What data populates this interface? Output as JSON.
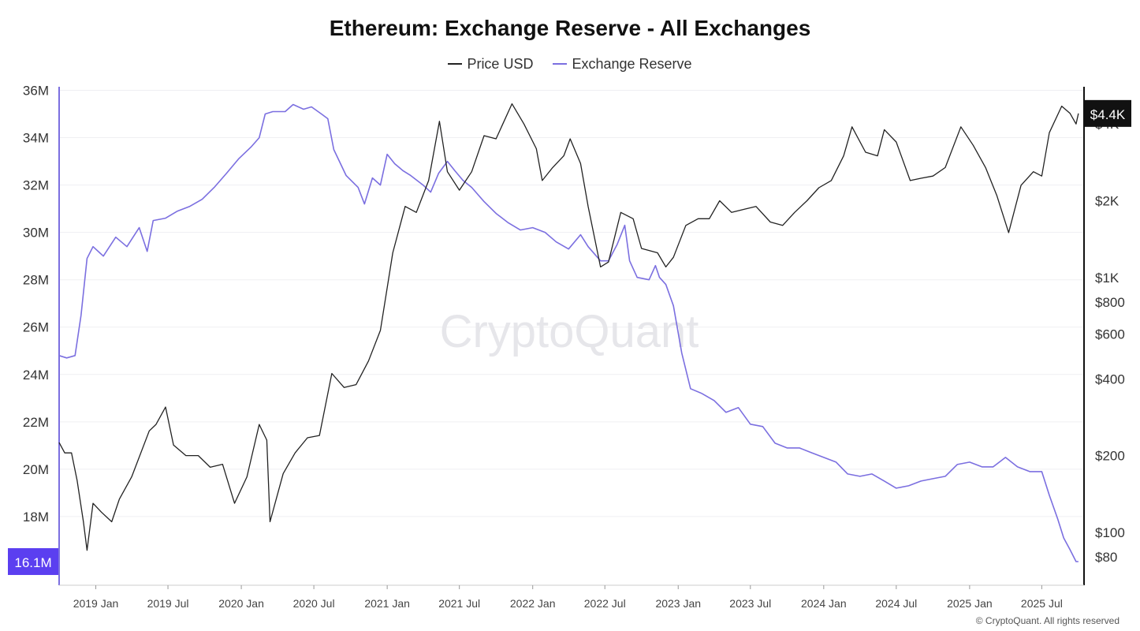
{
  "chart_data": {
    "type": "line",
    "title": "Ethereum: Exchange Reserve - All Exchanges",
    "legend": [
      {
        "name": "Price USD",
        "color": "#222222"
      },
      {
        "name": "Exchange Reserve",
        "color": "#7b6fe0"
      }
    ],
    "legend_placement": "top-center",
    "grid": true,
    "x_range": [
      "2018-10-01",
      "2025-10-15"
    ],
    "x_ticks": [
      {
        "date": "2019-01-01",
        "label": "2019 Jan"
      },
      {
        "date": "2019-07-01",
        "label": "2019 Jul"
      },
      {
        "date": "2020-01-01",
        "label": "2020 Jan"
      },
      {
        "date": "2020-07-01",
        "label": "2020 Jul"
      },
      {
        "date": "2021-01-01",
        "label": "2021 Jan"
      },
      {
        "date": "2021-07-01",
        "label": "2021 Jul"
      },
      {
        "date": "2022-01-01",
        "label": "2022 Jan"
      },
      {
        "date": "2022-07-01",
        "label": "2022 Jul"
      },
      {
        "date": "2023-01-01",
        "label": "2023 Jan"
      },
      {
        "date": "2023-07-01",
        "label": "2023 Jul"
      },
      {
        "date": "2024-01-01",
        "label": "2024 Jan"
      },
      {
        "date": "2024-07-01",
        "label": "2024 Jul"
      },
      {
        "date": "2025-01-01",
        "label": "2025 Jan"
      },
      {
        "date": "2025-07-01",
        "label": "2025 Jul"
      }
    ],
    "left_axis": {
      "scale": "linear",
      "range": [
        15100000,
        36150000
      ],
      "ticks": [
        {
          "value": 36000000,
          "label": "36M"
        },
        {
          "value": 34000000,
          "label": "34M"
        },
        {
          "value": 32000000,
          "label": "32M"
        },
        {
          "value": 30000000,
          "label": "30M"
        },
        {
          "value": 28000000,
          "label": "28M"
        },
        {
          "value": 26000000,
          "label": "26M"
        },
        {
          "value": 24000000,
          "label": "24M"
        },
        {
          "value": 22000000,
          "label": "22M"
        },
        {
          "value": 20000000,
          "label": "20M"
        },
        {
          "value": 18000000,
          "label": "18M"
        }
      ],
      "current_value_label": "16.1M",
      "current_value": 16100000
    },
    "right_axis": {
      "scale": "log",
      "range": [
        62,
        5600
      ],
      "ticks": [
        {
          "value": 4000,
          "label": "$4K"
        },
        {
          "value": 2000,
          "label": "$2K"
        },
        {
          "value": 1000,
          "label": "$1K"
        },
        {
          "value": 800,
          "label": "$800"
        },
        {
          "value": 600,
          "label": "$600"
        },
        {
          "value": 400,
          "label": "$400"
        },
        {
          "value": 200,
          "label": "$200"
        },
        {
          "value": 100,
          "label": "$100"
        },
        {
          "value": 80,
          "label": "$80"
        }
      ],
      "current_value_label": "$4.4K",
      "current_value": 4400
    },
    "series": [
      {
        "name": "Exchange Reserve",
        "axis": "left",
        "color": "#7b6fe0",
        "points": [
          [
            "2018-10-01",
            24800000
          ],
          [
            "2018-10-20",
            24700000
          ],
          [
            "2018-11-10",
            24800000
          ],
          [
            "2018-11-25",
            26500000
          ],
          [
            "2018-12-10",
            28900000
          ],
          [
            "2018-12-25",
            29400000
          ],
          [
            "2019-01-20",
            29000000
          ],
          [
            "2019-02-20",
            29800000
          ],
          [
            "2019-03-20",
            29400000
          ],
          [
            "2019-04-20",
            30200000
          ],
          [
            "2019-05-10",
            29200000
          ],
          [
            "2019-05-25",
            30500000
          ],
          [
            "2019-06-25",
            30600000
          ],
          [
            "2019-07-25",
            30900000
          ],
          [
            "2019-08-25",
            31100000
          ],
          [
            "2019-09-25",
            31400000
          ],
          [
            "2019-10-25",
            31900000
          ],
          [
            "2019-11-25",
            32500000
          ],
          [
            "2019-12-25",
            33100000
          ],
          [
            "2020-01-25",
            33600000
          ],
          [
            "2020-02-15",
            34000000
          ],
          [
            "2020-03-01",
            35000000
          ],
          [
            "2020-03-20",
            35100000
          ],
          [
            "2020-04-20",
            35100000
          ],
          [
            "2020-05-10",
            35400000
          ],
          [
            "2020-06-05",
            35200000
          ],
          [
            "2020-06-25",
            35300000
          ],
          [
            "2020-07-20",
            35000000
          ],
          [
            "2020-08-05",
            34800000
          ],
          [
            "2020-08-20",
            33500000
          ],
          [
            "2020-09-20",
            32400000
          ],
          [
            "2020-10-20",
            31900000
          ],
          [
            "2020-11-05",
            31200000
          ],
          [
            "2020-11-25",
            32300000
          ],
          [
            "2020-12-15",
            32000000
          ],
          [
            "2021-01-01",
            33300000
          ],
          [
            "2021-01-20",
            32900000
          ],
          [
            "2021-02-10",
            32600000
          ],
          [
            "2021-03-01",
            32400000
          ],
          [
            "2021-04-01",
            32000000
          ],
          [
            "2021-04-20",
            31700000
          ],
          [
            "2021-05-10",
            32500000
          ],
          [
            "2021-06-01",
            33000000
          ],
          [
            "2021-06-20",
            32600000
          ],
          [
            "2021-07-10",
            32200000
          ],
          [
            "2021-08-01",
            31900000
          ],
          [
            "2021-09-01",
            31300000
          ],
          [
            "2021-10-01",
            30800000
          ],
          [
            "2021-11-01",
            30400000
          ],
          [
            "2021-12-01",
            30100000
          ],
          [
            "2022-01-01",
            30200000
          ],
          [
            "2022-02-01",
            30000000
          ],
          [
            "2022-03-01",
            29600000
          ],
          [
            "2022-04-01",
            29300000
          ],
          [
            "2022-05-01",
            29900000
          ],
          [
            "2022-05-20",
            29400000
          ],
          [
            "2022-06-20",
            28800000
          ],
          [
            "2022-07-10",
            28800000
          ],
          [
            "2022-08-01",
            29500000
          ],
          [
            "2022-08-20",
            30300000
          ],
          [
            "2022-09-01",
            28800000
          ],
          [
            "2022-09-20",
            28100000
          ],
          [
            "2022-10-20",
            28000000
          ],
          [
            "2022-11-05",
            28600000
          ],
          [
            "2022-11-15",
            28100000
          ],
          [
            "2022-12-01",
            27800000
          ],
          [
            "2022-12-20",
            26900000
          ],
          [
            "2023-01-10",
            24900000
          ],
          [
            "2023-02-01",
            23400000
          ],
          [
            "2023-03-01",
            23200000
          ],
          [
            "2023-04-01",
            22900000
          ],
          [
            "2023-05-01",
            22400000
          ],
          [
            "2023-06-01",
            22600000
          ],
          [
            "2023-07-01",
            21900000
          ],
          [
            "2023-08-01",
            21800000
          ],
          [
            "2023-09-01",
            21100000
          ],
          [
            "2023-10-01",
            20900000
          ],
          [
            "2023-11-01",
            20900000
          ],
          [
            "2023-12-01",
            20700000
          ],
          [
            "2024-01-01",
            20500000
          ],
          [
            "2024-02-01",
            20300000
          ],
          [
            "2024-03-01",
            19800000
          ],
          [
            "2024-04-01",
            19700000
          ],
          [
            "2024-05-01",
            19800000
          ],
          [
            "2024-06-01",
            19500000
          ],
          [
            "2024-07-01",
            19200000
          ],
          [
            "2024-08-01",
            19300000
          ],
          [
            "2024-09-01",
            19500000
          ],
          [
            "2024-10-01",
            19600000
          ],
          [
            "2024-11-01",
            19700000
          ],
          [
            "2024-12-01",
            20200000
          ],
          [
            "2025-01-01",
            20300000
          ],
          [
            "2025-02-01",
            20100000
          ],
          [
            "2025-03-01",
            20100000
          ],
          [
            "2025-04-01",
            20500000
          ],
          [
            "2025-05-01",
            20100000
          ],
          [
            "2025-06-01",
            19900000
          ],
          [
            "2025-07-01",
            19900000
          ],
          [
            "2025-07-20",
            18900000
          ],
          [
            "2025-08-10",
            17900000
          ],
          [
            "2025-08-25",
            17100000
          ],
          [
            "2025-09-10",
            16600000
          ],
          [
            "2025-09-25",
            16100000
          ],
          [
            "2025-10-01",
            16100000
          ]
        ]
      },
      {
        "name": "Price USD",
        "axis": "right",
        "color": "#222222",
        "points": [
          [
            "2018-10-01",
            225
          ],
          [
            "2018-10-15",
            205
          ],
          [
            "2018-11-01",
            205
          ],
          [
            "2018-11-15",
            160
          ],
          [
            "2018-12-01",
            110
          ],
          [
            "2018-12-10",
            85
          ],
          [
            "2018-12-25",
            130
          ],
          [
            "2019-01-15",
            120
          ],
          [
            "2019-02-10",
            110
          ],
          [
            "2019-03-01",
            135
          ],
          [
            "2019-04-01",
            165
          ],
          [
            "2019-05-15",
            250
          ],
          [
            "2019-06-01",
            265
          ],
          [
            "2019-06-25",
            310
          ],
          [
            "2019-07-15",
            220
          ],
          [
            "2019-08-15",
            200
          ],
          [
            "2019-09-15",
            200
          ],
          [
            "2019-10-15",
            180
          ],
          [
            "2019-11-15",
            185
          ],
          [
            "2019-12-15",
            130
          ],
          [
            "2020-01-15",
            165
          ],
          [
            "2020-02-15",
            265
          ],
          [
            "2020-03-05",
            230
          ],
          [
            "2020-03-13",
            110
          ],
          [
            "2020-04-15",
            170
          ],
          [
            "2020-05-15",
            205
          ],
          [
            "2020-06-15",
            235
          ],
          [
            "2020-07-15",
            240
          ],
          [
            "2020-08-15",
            420
          ],
          [
            "2020-09-15",
            370
          ],
          [
            "2020-10-15",
            380
          ],
          [
            "2020-11-15",
            470
          ],
          [
            "2020-12-15",
            620
          ],
          [
            "2021-01-15",
            1250
          ],
          [
            "2021-02-15",
            1900
          ],
          [
            "2021-03-15",
            1800
          ],
          [
            "2021-04-15",
            2400
          ],
          [
            "2021-05-12",
            4100
          ],
          [
            "2021-06-01",
            2600
          ],
          [
            "2021-07-01",
            2200
          ],
          [
            "2021-08-01",
            2600
          ],
          [
            "2021-09-01",
            3600
          ],
          [
            "2021-10-01",
            3500
          ],
          [
            "2021-11-10",
            4800
          ],
          [
            "2021-12-10",
            4000
          ],
          [
            "2022-01-10",
            3200
          ],
          [
            "2022-01-25",
            2400
          ],
          [
            "2022-02-20",
            2700
          ],
          [
            "2022-03-20",
            3000
          ],
          [
            "2022-04-05",
            3500
          ],
          [
            "2022-05-01",
            2800
          ],
          [
            "2022-05-20",
            1900
          ],
          [
            "2022-06-20",
            1100
          ],
          [
            "2022-07-10",
            1150
          ],
          [
            "2022-08-10",
            1800
          ],
          [
            "2022-09-10",
            1700
          ],
          [
            "2022-10-01",
            1300
          ],
          [
            "2022-11-10",
            1250
          ],
          [
            "2022-12-01",
            1100
          ],
          [
            "2022-12-20",
            1200
          ],
          [
            "2023-01-20",
            1600
          ],
          [
            "2023-02-20",
            1700
          ],
          [
            "2023-03-20",
            1700
          ],
          [
            "2023-04-15",
            2000
          ],
          [
            "2023-05-15",
            1800
          ],
          [
            "2023-06-15",
            1850
          ],
          [
            "2023-07-15",
            1900
          ],
          [
            "2023-08-20",
            1650
          ],
          [
            "2023-09-20",
            1600
          ],
          [
            "2023-10-20",
            1800
          ],
          [
            "2023-11-20",
            2000
          ],
          [
            "2023-12-20",
            2250
          ],
          [
            "2024-01-20",
            2400
          ],
          [
            "2024-02-20",
            3000
          ],
          [
            "2024-03-12",
            3900
          ],
          [
            "2024-04-15",
            3100
          ],
          [
            "2024-05-15",
            3000
          ],
          [
            "2024-06-01",
            3800
          ],
          [
            "2024-07-01",
            3400
          ],
          [
            "2024-08-05",
            2400
          ],
          [
            "2024-09-01",
            2450
          ],
          [
            "2024-10-01",
            2500
          ],
          [
            "2024-11-01",
            2700
          ],
          [
            "2024-12-10",
            3900
          ],
          [
            "2025-01-10",
            3300
          ],
          [
            "2025-02-10",
            2700
          ],
          [
            "2025-03-10",
            2100
          ],
          [
            "2025-04-09",
            1500
          ],
          [
            "2025-05-10",
            2300
          ],
          [
            "2025-06-10",
            2600
          ],
          [
            "2025-07-01",
            2500
          ],
          [
            "2025-07-20",
            3700
          ],
          [
            "2025-08-20",
            4700
          ],
          [
            "2025-09-10",
            4400
          ],
          [
            "2025-09-25",
            4000
          ],
          [
            "2025-10-01",
            4400
          ]
        ]
      }
    ]
  },
  "watermark": "CryptoQuant",
  "copyright": "© CryptoQuant. All rights reserved"
}
